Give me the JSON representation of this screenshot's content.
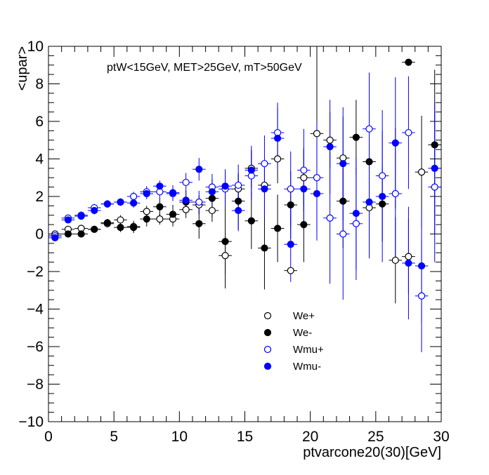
{
  "chart_data": {
    "type": "scatter",
    "title": "ptW<15GeV, MET>25GeV, mT>50GeV",
    "xlabel": "ptvarcone20(30)[GeV]",
    "ylabel": "<upar>",
    "xlim": [
      0,
      30
    ],
    "ylim": [
      -10,
      10
    ],
    "x_ticks": [
      0,
      5,
      10,
      15,
      20,
      25,
      30
    ],
    "y_ticks": [
      -10,
      -8,
      -6,
      -4,
      -2,
      0,
      2,
      4,
      6,
      8,
      10
    ],
    "x_tick_labels": [
      "0",
      "5",
      "10",
      "15",
      "20",
      "25",
      "30"
    ],
    "y_tick_labels": [
      "−10",
      "−8",
      "−6",
      "−4",
      "−2",
      "0",
      "2",
      "4",
      "6",
      "8",
      "10"
    ],
    "grid": false,
    "legend_position": "bottom-center",
    "x": [
      0.5,
      1.5,
      2.5,
      3.5,
      4.5,
      5.5,
      6.5,
      7.5,
      8.5,
      9.5,
      10.5,
      11.5,
      12.5,
      13.5,
      14.5,
      15.5,
      16.5,
      17.5,
      18.5,
      19.5,
      20.5,
      21.5,
      22.5,
      23.5,
      24.5,
      25.5,
      26.5,
      27.5,
      28.5,
      29.5
    ],
    "series": [
      {
        "name": "We+",
        "marker": "open",
        "color": "#000000",
        "y": [
          0.0,
          0.25,
          0.3,
          0.25,
          0.55,
          0.75,
          0.4,
          1.2,
          0.8,
          0.8,
          1.3,
          1.55,
          1.25,
          -1.15,
          2.4,
          3.5,
          2.6,
          4.0,
          -1.95,
          3.0,
          5.35,
          5.0,
          4.05,
          null,
          1.4,
          null,
          -1.4,
          -1.2,
          3.3,
          null
        ],
        "err": [
          0.1,
          0.1,
          0.15,
          0.15,
          0.2,
          0.25,
          0.3,
          0.3,
          0.3,
          0.4,
          0.45,
          0.5,
          0.6,
          1.0,
          0.8,
          1.0,
          1.2,
          1.3,
          0.1,
          1.5,
          5.0,
          1.5,
          2.2,
          null,
          2.0,
          null,
          2.3,
          2.0,
          3.0,
          null
        ]
      },
      {
        "name": "We-",
        "marker": "filled",
        "color": "#000000",
        "y": [
          -0.1,
          0.0,
          0.0,
          0.25,
          0.6,
          0.35,
          0.35,
          0.8,
          1.45,
          1.05,
          1.7,
          0.55,
          1.9,
          -0.4,
          1.75,
          0.7,
          -0.75,
          0.3,
          1.55,
          0.5,
          null,
          null,
          1.75,
          5.15,
          3.85,
          1.6,
          null,
          9.15,
          null,
          4.75
        ],
        "err": [
          0.1,
          0.1,
          0.1,
          0.15,
          0.2,
          0.25,
          0.3,
          0.4,
          0.5,
          0.5,
          0.6,
          0.8,
          1.0,
          2.5,
          1.5,
          1.5,
          2.2,
          1.8,
          1.8,
          2.0,
          null,
          null,
          2.5,
          2.0,
          2.0,
          2.0,
          null,
          0.05,
          null,
          4.0
        ]
      },
      {
        "name": "Wmu+",
        "marker": "open",
        "color": "#0000ff",
        "y": [
          -0.1,
          0.85,
          1.0,
          1.4,
          1.6,
          1.7,
          2.0,
          2.25,
          2.25,
          2.15,
          2.75,
          1.7,
          2.5,
          2.4,
          2.6,
          3.1,
          3.75,
          5.4,
          2.4,
          3.4,
          3.0,
          0.85,
          0.0,
          0.55,
          5.6,
          3.1,
          2.15,
          5.4,
          -3.3,
          2.5
        ],
        "err": [
          0.1,
          0.15,
          0.2,
          0.2,
          0.2,
          0.2,
          0.25,
          0.3,
          0.3,
          0.4,
          0.5,
          0.6,
          0.7,
          0.9,
          1.1,
          1.3,
          1.5,
          1.6,
          2.0,
          2.2,
          3.0,
          3.5,
          3.5,
          3.0,
          3.0,
          3.5,
          3.5,
          3.0,
          3.0,
          4.0
        ]
      },
      {
        "name": "Wmu-",
        "marker": "filled",
        "color": "#0000ff",
        "y": [
          -0.2,
          0.75,
          0.95,
          1.25,
          1.6,
          1.7,
          1.65,
          2.15,
          2.55,
          2.2,
          1.8,
          3.45,
          2.25,
          2.55,
          1.25,
          3.4,
          2.4,
          5.1,
          -0.55,
          2.4,
          2.15,
          4.65,
          3.75,
          1.1,
          1.7,
          2.0,
          4.85,
          -1.55,
          -1.7,
          3.5
        ],
        "err": [
          0.1,
          0.15,
          0.15,
          0.2,
          0.2,
          0.2,
          0.25,
          0.3,
          0.3,
          0.4,
          0.5,
          0.6,
          0.7,
          0.9,
          1.1,
          1.3,
          1.5,
          1.6,
          2.0,
          2.2,
          2.5,
          2.5,
          3.0,
          3.0,
          3.0,
          3.5,
          3.5,
          3.0,
          3.0,
          3.5
        ]
      }
    ]
  }
}
